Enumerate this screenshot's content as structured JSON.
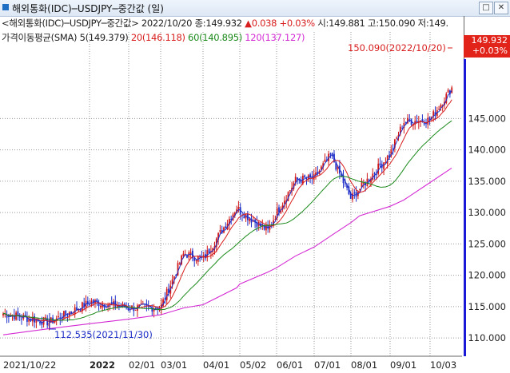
{
  "window": {
    "title": "해외통화(IDC)─USDJPY─중간값 (일)",
    "maximize_glyph": "□",
    "close_glyph": "✕"
  },
  "legend": {
    "price_line": "<해외통화(IDC)─USDJPY─중간값> 2022/10/20 종:149.932",
    "change_arrow": "▲",
    "change": "0.038",
    "change_pct": "+0.03%",
    "rest": "시:149.881 고:150.090 저:149.",
    "sma_label": "가격이동평균(SMA) 5(149.379)",
    "sma20": "20(146.118)",
    "sma60": "60(140.895)",
    "sma120": "120(137.127)"
  },
  "price_flag": {
    "price": "149.932",
    "pct": "+0.03%"
  },
  "annotations": {
    "high": "150.090(2022/10/20)",
    "low": "112.535(2021/11/30)"
  },
  "y_axis": {
    "ticks": [
      110,
      115,
      120,
      125,
      130,
      135,
      140,
      145
    ],
    "labels": [
      "110.000",
      "115.000",
      "120.000",
      "125.000",
      "130.000",
      "135.000",
      "140.000",
      "145.000"
    ]
  },
  "x_axis": {
    "labels": [
      "2021/10/22",
      "2022",
      "02/01",
      "03/01",
      "04/01",
      "05/02",
      "06/01",
      "07/01",
      "08/01",
      "09/01",
      "10/03"
    ]
  },
  "colors": {
    "candle_up": "#d01818",
    "candle_down": "#1f2fc8",
    "sma5": "#1f2fc8",
    "sma20": "#d81e1e",
    "sma60": "#1a8a1a",
    "sma120": "#d42ad4",
    "axis_line": "#1a1ad6"
  },
  "chart_data": {
    "type": "line",
    "title": "해외통화(IDC)─USDJPY─중간값 (일)",
    "ylim": [
      109,
      151
    ],
    "series": [
      {
        "name": "USDJPY",
        "x": [
          "2021/10/22",
          "2021/11/30",
          "2022/01/04",
          "2022/02/01",
          "2022/03/01",
          "2022/03/28",
          "2022/04/01",
          "2022/04/28",
          "2022/05/02",
          "2022/05/24",
          "2022/06/01",
          "2022/06/15",
          "2022/07/01",
          "2022/07/14",
          "2022/08/01",
          "2022/08/10",
          "2022/09/01",
          "2022/09/07",
          "2022/10/03",
          "2022/10/20"
        ],
        "values": [
          113.9,
          112.5,
          115.8,
          114.8,
          114.9,
          123.5,
          122.5,
          130.8,
          130.3,
          127.1,
          130.0,
          135.2,
          135.5,
          139.2,
          132.2,
          133.8,
          139.3,
          144.5,
          144.8,
          149.9
        ]
      },
      {
        "name": "SMA 120",
        "values": [
          110.5,
          111.5,
          112.3,
          113.0,
          113.7,
          114.8,
          115.3,
          118.0,
          118.6,
          120.5,
          121.2,
          123.1,
          124.5,
          126.3,
          128.4,
          129.5,
          131.0,
          132.0,
          134.8,
          137.1
        ]
      }
    ]
  }
}
